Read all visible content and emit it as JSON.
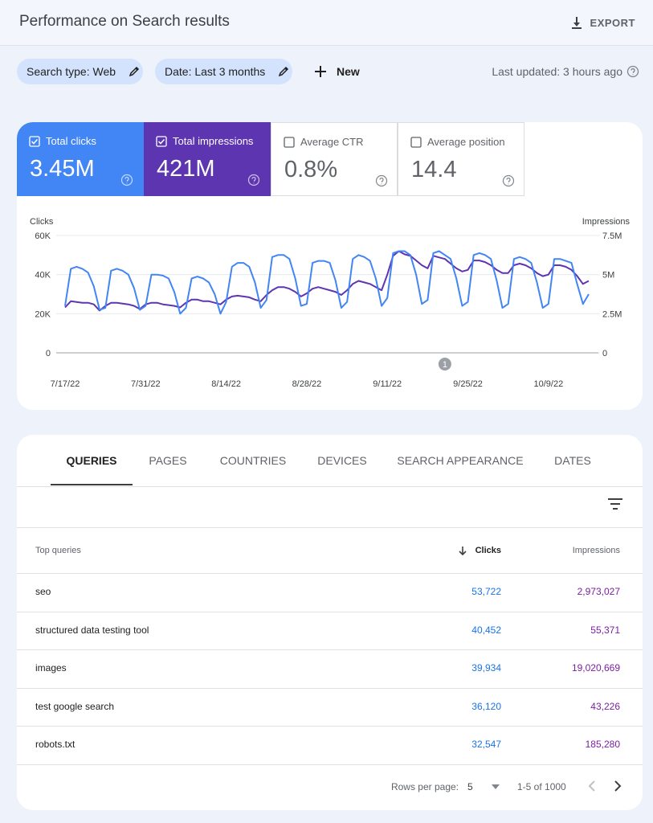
{
  "header": {
    "title": "Performance on Search results",
    "export": "EXPORT"
  },
  "filters": {
    "chips": [
      "Search type: Web",
      "Date: Last 3 months"
    ],
    "new": "New",
    "last_updated": "Last updated: 3 hours ago"
  },
  "metrics": [
    {
      "label": "Total clicks",
      "value": "3.45M",
      "checked": true,
      "color": "#4285f4"
    },
    {
      "label": "Total impressions",
      "value": "421M",
      "checked": true,
      "color": "#5e35b1"
    },
    {
      "label": "Average CTR",
      "value": "0.8%",
      "checked": false
    },
    {
      "label": "Average position",
      "value": "14.4",
      "checked": false
    }
  ],
  "chart_data": {
    "type": "line",
    "ylabel": "Clicks",
    "y2label": "Impressions",
    "x": [
      "7/17/22",
      "7/18/22",
      "7/19/22",
      "7/20/22",
      "7/21/22",
      "7/22/22",
      "7/23/22",
      "7/24/22",
      "7/25/22",
      "7/26/22",
      "7/27/22",
      "7/28/22",
      "7/29/22",
      "7/30/22",
      "7/31/22",
      "8/1/22",
      "8/2/22",
      "8/3/22",
      "8/4/22",
      "8/5/22",
      "8/6/22",
      "8/7/22",
      "8/8/22",
      "8/9/22",
      "8/10/22",
      "8/11/22",
      "8/12/22",
      "8/13/22",
      "8/14/22",
      "8/15/22",
      "8/16/22",
      "8/17/22",
      "8/18/22",
      "8/19/22",
      "8/20/22",
      "8/21/22",
      "8/22/22",
      "8/23/22",
      "8/24/22",
      "8/25/22",
      "8/26/22",
      "8/27/22",
      "8/28/22",
      "8/29/22",
      "8/30/22",
      "8/31/22",
      "9/1/22",
      "9/2/22",
      "9/3/22",
      "9/4/22",
      "9/5/22",
      "9/6/22",
      "9/7/22",
      "9/8/22",
      "9/9/22",
      "9/10/22",
      "9/11/22",
      "9/12/22",
      "9/13/22",
      "9/14/22",
      "9/15/22",
      "9/16/22",
      "9/17/22",
      "9/18/22",
      "9/19/22",
      "9/20/22",
      "9/21/22",
      "9/22/22",
      "9/23/22",
      "9/24/22",
      "9/25/22",
      "9/26/22",
      "9/27/22",
      "9/28/22",
      "9/29/22",
      "9/30/22",
      "10/1/22",
      "10/2/22",
      "10/3/22",
      "10/4/22",
      "10/5/22",
      "10/6/22",
      "10/7/22",
      "10/8/22",
      "10/9/22",
      "10/10/22",
      "10/11/22",
      "10/12/22",
      "10/13/22",
      "10/14/22",
      "10/15/22",
      "10/16/22"
    ],
    "series": [
      {
        "name": "Clicks",
        "color": "#4285f4",
        "values": [
          24000,
          43000,
          44000,
          43000,
          41000,
          34000,
          22000,
          23000,
          42000,
          43000,
          42000,
          40000,
          33000,
          22000,
          24000,
          40000,
          40000,
          39500,
          38000,
          31000,
          20000,
          23000,
          38000,
          39000,
          38000,
          36000,
          30000,
          20000,
          26000,
          44000,
          46000,
          46000,
          44000,
          36000,
          23000,
          27000,
          49000,
          50000,
          50000,
          48000,
          38000,
          24000,
          25000,
          46000,
          47000,
          47000,
          46000,
          37000,
          23000,
          26000,
          48000,
          50000,
          49000,
          47000,
          38000,
          24000,
          28000,
          51000,
          52000,
          52000,
          50000,
          40000,
          25000,
          27000,
          51000,
          52000,
          50000,
          48000,
          38000,
          24000,
          26000,
          50000,
          51000,
          50000,
          48000,
          37000,
          23000,
          25000,
          48000,
          49000,
          48000,
          46000,
          36000,
          23000,
          25000,
          48000,
          48000,
          47000,
          46000,
          35000,
          25000,
          30000
        ]
      },
      {
        "name": "Impressions",
        "color": "#5e35b1",
        "axis": "y2",
        "values": [
          2900000,
          3300000,
          3250000,
          3200000,
          3200000,
          3100000,
          2700000,
          3000000,
          3200000,
          3200000,
          3150000,
          3100000,
          3000000,
          2800000,
          3100000,
          3200000,
          3200000,
          3100000,
          3050000,
          3000000,
          2900000,
          3200000,
          3400000,
          3400000,
          3300000,
          3300000,
          3200000,
          3100000,
          3400000,
          3600000,
          3650000,
          3600000,
          3550000,
          3400000,
          3300000,
          3700000,
          4000000,
          4200000,
          4200000,
          4100000,
          3900000,
          3600000,
          3800000,
          4100000,
          4200000,
          4100000,
          4000000,
          3900000,
          3700000,
          4000000,
          4400000,
          4600000,
          4500000,
          4400000,
          4200000,
          4000000,
          5000000,
          6200000,
          6500000,
          6300000,
          6200000,
          5900000,
          5600000,
          5400000,
          6200000,
          6100000,
          6000000,
          5700000,
          5400000,
          5200000,
          5300000,
          5900000,
          5900000,
          5800000,
          5600000,
          5300000,
          5100000,
          5100000,
          5600000,
          5700000,
          5600000,
          5400000,
          5100000,
          4900000,
          5000000,
          5600000,
          5600000,
          5500000,
          5300000,
          4900000,
          4400000,
          4600000
        ]
      }
    ],
    "ylim": [
      0,
      60000
    ],
    "yticks": [
      0,
      {
        "value": 20000,
        "label": "20K"
      },
      {
        "value": 40000,
        "label": "40K"
      },
      {
        "value": 60000,
        "label": "60K"
      }
    ],
    "y2lim": [
      0,
      7500000
    ],
    "y2ticks": [
      0,
      {
        "value": 2500000,
        "label": "2.5M"
      },
      {
        "value": 5000000,
        "label": "5M"
      },
      {
        "value": 7500000,
        "label": "7.5M"
      }
    ],
    "xticks": [
      "7/17/22",
      "7/31/22",
      "8/14/22",
      "8/28/22",
      "9/11/22",
      "9/25/22",
      "10/9/22"
    ],
    "grid": true,
    "annotations": [
      {
        "x": "9/21/22",
        "label": "1"
      }
    ]
  },
  "tabs": [
    "QUERIES",
    "PAGES",
    "COUNTRIES",
    "DEVICES",
    "SEARCH APPEARANCE",
    "DATES"
  ],
  "table": {
    "columns": [
      "Top queries",
      "Clicks",
      "Impressions"
    ],
    "rows": [
      [
        "seo",
        "53,722",
        "2,973,027"
      ],
      [
        "structured data testing tool",
        "40,452",
        "55,371"
      ],
      [
        "images",
        "39,934",
        "19,020,669"
      ],
      [
        "test google search",
        "36,120",
        "43,226"
      ],
      [
        "robots.txt",
        "32,547",
        "185,280"
      ]
    ]
  },
  "pagination": {
    "rows_per_page_label": "Rows per page:",
    "rows_per_page": "5",
    "range": "1-5 of 1000"
  }
}
